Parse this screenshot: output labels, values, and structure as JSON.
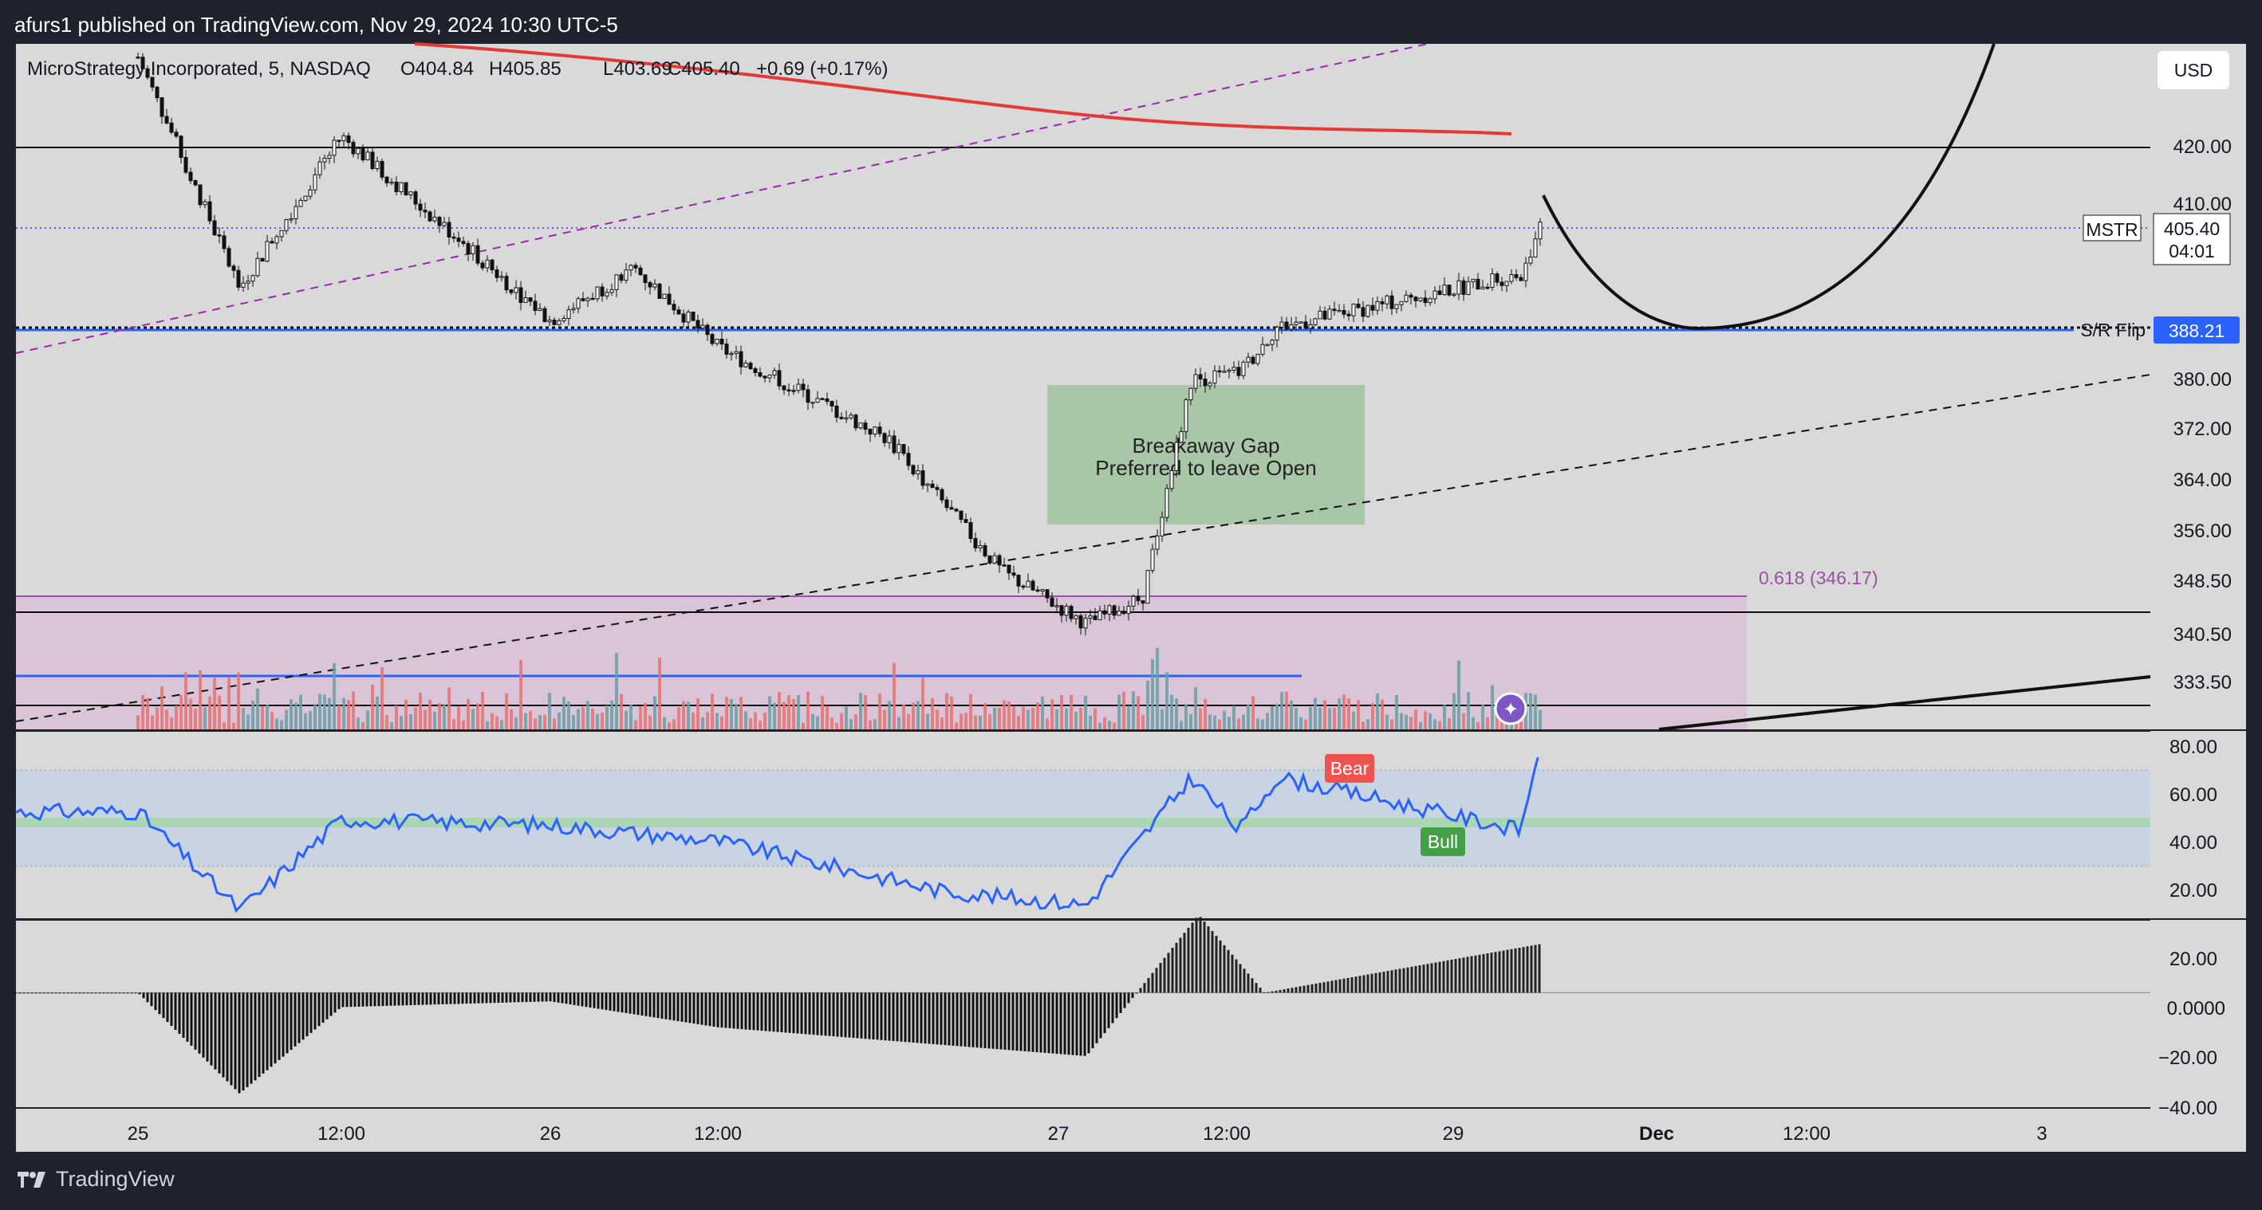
{
  "header": {
    "publisher_line": "afurs1 published on TradingView.com, Nov 29, 2024 10:30 UTC-5"
  },
  "legend": {
    "symbol": "MicroStrategy Incorporated, 5, NASDAQ",
    "open": "O404.84",
    "high": "H405.85",
    "low": "L403.69",
    "close": "C405.40",
    "change": "+0.69 (+0.17%)"
  },
  "currency_button": "USD",
  "price_axis": {
    "labels": [
      "420.00",
      "410.00",
      "380.00",
      "372.00",
      "364.00",
      "356.00",
      "348.50",
      "340.50",
      "333.50"
    ],
    "last_price_tag": {
      "ticker": "MSTR",
      "price": "405.40",
      "countdown": "04:01"
    },
    "level_tag": {
      "label": "S/R Flip",
      "price": "388.21",
      "color": "#2962ff"
    }
  },
  "annotations": {
    "gap_box": {
      "line1": "Breakaway Gap",
      "line2": "Preferred to leave Open",
      "color": "#8fbc8f"
    },
    "fib_label": "0.618 (346.17)"
  },
  "rsi_panel": {
    "labels": [
      "80.00",
      "60.00",
      "40.00",
      "20.00"
    ],
    "bear_tag": "Bear",
    "bull_tag": "Bull",
    "line_color": "#2962ff"
  },
  "osc_panel": {
    "labels": [
      "20.00",
      "0.0000",
      "−20.00",
      "−40.00"
    ]
  },
  "time_axis": {
    "labels": [
      "25",
      "12:00",
      "26",
      "12:00",
      "27",
      "12:00",
      "29",
      "Dec",
      "12:00",
      "3"
    ]
  },
  "footer": {
    "brand": "TradingView"
  },
  "colors": {
    "background": "#d9d9d9",
    "frame": "#1e222d",
    "up_volume": "#6a9fa6",
    "down_volume": "#e57373",
    "ma_line": "#e53935",
    "fib_zone": "#c8a2c8"
  },
  "chart_data": [
    {
      "type": "candlestick",
      "title": "MicroStrategy Incorporated, 5, NASDAQ",
      "ylim": [
        328,
        432
      ],
      "x_ticks": [
        "25",
        "12:00",
        "26",
        "12:00",
        "27",
        "12:00",
        "29",
        "Dec",
        "12:00",
        "3"
      ],
      "waypoints": [
        {
          "x": "Nov 25 00:00",
          "close": 430
        },
        {
          "x": "Nov 25 06:00",
          "close": 395
        },
        {
          "x": "Nov 25 12:00",
          "close": 418
        },
        {
          "x": "Nov 25 18:00",
          "close": 404
        },
        {
          "x": "Nov 26 00:00",
          "close": 390
        },
        {
          "x": "Nov 26 06:00",
          "close": 398
        },
        {
          "x": "Nov 26 12:00",
          "close": 386
        },
        {
          "x": "Nov 26 18:00",
          "close": 372
        },
        {
          "x": "Nov 26 22:00",
          "close": 352
        },
        {
          "x": "Nov 27 02:00",
          "close": 344
        },
        {
          "x": "Nov 27 06:00",
          "close": 348
        },
        {
          "x": "Nov 27 09:30",
          "close": 381
        },
        {
          "x": "Nov 27 14:00",
          "close": 382
        },
        {
          "x": "Nov 27 20:00",
          "close": 389
        },
        {
          "x": "Nov 29 08:00",
          "close": 397
        },
        {
          "x": "Nov 29 10:30",
          "close": 405.4
        }
      ],
      "last": {
        "open": 404.84,
        "high": 405.85,
        "low": 403.69,
        "close": 405.4,
        "change": 0.69,
        "change_pct": 0.17
      },
      "levels": {
        "resistance": 421,
        "sr_flip": 388.21,
        "fib_0618": 346.17,
        "support_low": 333.5
      }
    },
    {
      "type": "line",
      "title": "RSI",
      "ylim": [
        15,
        85
      ],
      "bands": [
        30,
        50,
        70
      ],
      "waypoints": [
        {
          "x": "Nov 25 00:00",
          "y": 55
        },
        {
          "x": "Nov 25 06:00",
          "y": 18
        },
        {
          "x": "Nov 25 12:00",
          "y": 52
        },
        {
          "x": "Nov 26 00:00",
          "y": 50
        },
        {
          "x": "Nov 26 12:00",
          "y": 44
        },
        {
          "x": "Nov 26 20:00",
          "y": 25
        },
        {
          "x": "Nov 27 02:00",
          "y": 20
        },
        {
          "x": "Nov 27 09:30",
          "y": 68
        },
        {
          "x": "Nov 27 14:00",
          "y": 48
        },
        {
          "x": "Nov 27 20:00",
          "y": 68
        },
        {
          "x": "Nov 29 08:00",
          "y": 48
        },
        {
          "x": "Nov 29 10:00",
          "y": 78
        },
        {
          "x": "Nov 29 10:30",
          "y": 55
        }
      ]
    },
    {
      "type": "bar",
      "title": "Momentum histogram",
      "ylim": [
        -40,
        25
      ],
      "waypoints": [
        {
          "x": "Nov 25 00:00",
          "y": 0
        },
        {
          "x": "Nov 25 06:00",
          "y": -35
        },
        {
          "x": "Nov 25 12:00",
          "y": -5
        },
        {
          "x": "Nov 26 00:00",
          "y": -3
        },
        {
          "x": "Nov 26 12:00",
          "y": -12
        },
        {
          "x": "Nov 27 02:00",
          "y": -22
        },
        {
          "x": "Nov 27 10:00",
          "y": 27
        },
        {
          "x": "Nov 27 18:00",
          "y": 0
        },
        {
          "x": "Nov 29 10:30",
          "y": 17
        }
      ]
    }
  ]
}
